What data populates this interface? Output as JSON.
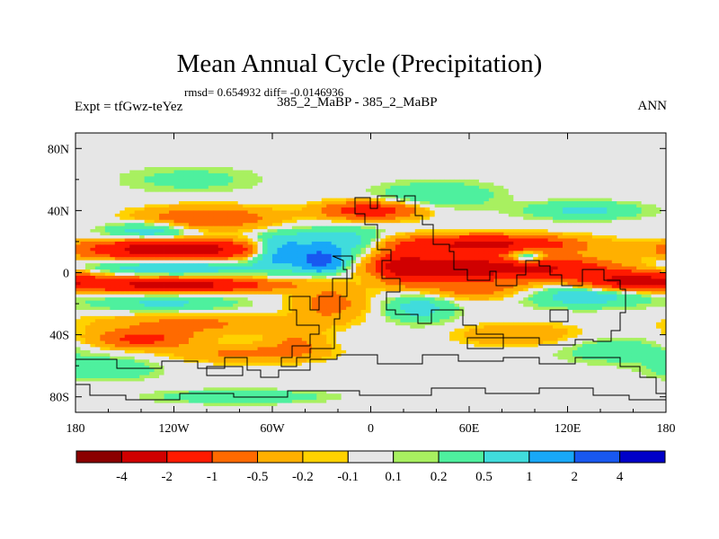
{
  "header": {
    "title": "Mean Annual Cycle (Precipitation)",
    "stats": "rmsd= 0.654932 diff= -0.0146936",
    "expt": "Expt = tfGwz-teYez",
    "cases": "385_2_MaBP - 385_2_MaBP",
    "season": "ANN"
  },
  "chart_data": {
    "type": "heatmap",
    "title": "Mean Annual Cycle (Precipitation)",
    "subtitle": "385_2_MaBP - 385_2_MaBP",
    "variable": "Precipitation difference",
    "x_range": [
      -180,
      180
    ],
    "y_range": [
      -90,
      90
    ],
    "x_ticks": [
      {
        "value": -180,
        "label": "180"
      },
      {
        "value": -120,
        "label": "120W"
      },
      {
        "value": -60,
        "label": "60W"
      },
      {
        "value": 0,
        "label": "0"
      },
      {
        "value": 60,
        "label": "60E"
      },
      {
        "value": 120,
        "label": "120E"
      },
      {
        "value": 180,
        "label": "180"
      }
    ],
    "y_ticks": [
      {
        "value": 80,
        "label": "80N"
      },
      {
        "value": 40,
        "label": "40N"
      },
      {
        "value": 0,
        "label": "0"
      },
      {
        "value": -40,
        "label": "40S"
      },
      {
        "value": -80,
        "label": "80S"
      }
    ],
    "colorbar": {
      "boundaries": [
        "-4",
        "-2",
        "-1",
        "-0.5",
        "-0.2",
        "-0.1",
        "0.1",
        "0.2",
        "0.5",
        "1",
        "2",
        "4"
      ],
      "colors": [
        "#8b0000",
        "#d00000",
        "#ff1a00",
        "#ff6a00",
        "#ffb000",
        "#ffd200",
        "#e6e6e6",
        "#a8f060",
        "#4ef09e",
        "#40dcdc",
        "#18a8f8",
        "#1858f0",
        "#0000c8"
      ]
    },
    "features": [
      {
        "lon": -120,
        "lat": 15,
        "value": -3.0,
        "sx": 35,
        "sy": 4
      },
      {
        "lon": -100,
        "lat": 35,
        "value": -1.0,
        "sx": 28,
        "sy": 5
      },
      {
        "lon": -135,
        "lat": 27,
        "value": 0.8,
        "sx": 18,
        "sy": 4
      },
      {
        "lon": -120,
        "lat": 3,
        "value": 0.9,
        "sx": 35,
        "sy": 3
      },
      {
        "lon": -120,
        "lat": -8,
        "value": -2.5,
        "sx": 40,
        "sy": 3
      },
      {
        "lon": -125,
        "lat": -20,
        "value": 0.6,
        "sx": 30,
        "sy": 4
      },
      {
        "lon": -110,
        "lat": -33,
        "value": -0.6,
        "sx": 40,
        "sy": 5
      },
      {
        "lon": -140,
        "lat": -43,
        "value": -1.2,
        "sx": 20,
        "sy": 4
      },
      {
        "lon": -75,
        "lat": -52,
        "value": -0.6,
        "sx": 30,
        "sy": 4
      },
      {
        "lon": -80,
        "lat": -80,
        "value": 0.5,
        "sx": 35,
        "sy": 3
      },
      {
        "lon": -55,
        "lat": 13,
        "value": 1.5,
        "sx": 12,
        "sy": 7
      },
      {
        "lon": -30,
        "lat": 8,
        "value": 2.6,
        "sx": 9,
        "sy": 5
      },
      {
        "lon": -20,
        "lat": 20,
        "value": 0.9,
        "sx": 20,
        "sy": 6
      },
      {
        "lon": -25,
        "lat": -20,
        "value": -0.7,
        "sx": 15,
        "sy": 8
      },
      {
        "lon": -45,
        "lat": -45,
        "value": -0.5,
        "sx": 12,
        "sy": 6
      },
      {
        "lon": 0,
        "lat": 40,
        "value": -1.5,
        "sx": 20,
        "sy": 4
      },
      {
        "lon": 20,
        "lat": 5,
        "value": -1.6,
        "sx": 12,
        "sy": 8
      },
      {
        "lon": 45,
        "lat": 3,
        "value": -3.2,
        "sx": 22,
        "sy": 4
      },
      {
        "lon": 70,
        "lat": 18,
        "value": -2.4,
        "sx": 35,
        "sy": 4
      },
      {
        "lon": 100,
        "lat": 3,
        "value": -2.2,
        "sx": 30,
        "sy": 5
      },
      {
        "lon": 95,
        "lat": 10,
        "value": 1.4,
        "sx": 8,
        "sy": 4
      },
      {
        "lon": 160,
        "lat": -5,
        "value": -2.3,
        "sx": 22,
        "sy": 4
      },
      {
        "lon": 130,
        "lat": -15,
        "value": 0.8,
        "sx": 25,
        "sy": 5
      },
      {
        "lon": 60,
        "lat": -10,
        "value": -0.8,
        "sx": 25,
        "sy": 5
      },
      {
        "lon": 30,
        "lat": -22,
        "value": 0.7,
        "sx": 15,
        "sy": 7
      },
      {
        "lon": 90,
        "lat": -40,
        "value": -0.5,
        "sx": 25,
        "sy": 5
      },
      {
        "lon": 150,
        "lat": -50,
        "value": 0.4,
        "sx": 25,
        "sy": 6
      },
      {
        "lon": 40,
        "lat": 50,
        "value": 0.5,
        "sx": 25,
        "sy": 6
      },
      {
        "lon": -110,
        "lat": 60,
        "value": 0.3,
        "sx": 30,
        "sy": 6
      },
      {
        "lon": 130,
        "lat": 40,
        "value": 0.6,
        "sx": 25,
        "sy": 4
      },
      {
        "lon": -160,
        "lat": -62,
        "value": 0.5,
        "sx": 20,
        "sy": 5
      }
    ]
  }
}
